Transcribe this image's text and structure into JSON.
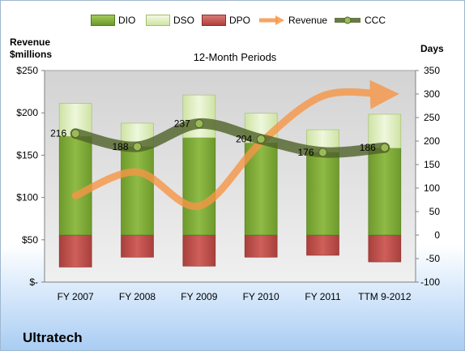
{
  "company": "Ultratech",
  "chart_data": {
    "type": "bar",
    "title": "12-Month Periods",
    "categories": [
      "FY 2007",
      "FY 2008",
      "FY 2009",
      "FY 2010",
      "FY 2011",
      "TTM 9-2012"
    ],
    "left_axis": {
      "title": [
        "Revenue",
        "$millions"
      ],
      "ylim": [
        0,
        250
      ],
      "ticks": [
        "$-",
        "$50",
        "$100",
        "$150",
        "$200",
        "$250"
      ],
      "tick_values": [
        0,
        50,
        100,
        150,
        200,
        250
      ]
    },
    "right_axis": {
      "title": "Days",
      "ylim": [
        -100,
        350
      ],
      "ticks": [
        "-100",
        "-50",
        "0",
        "50",
        "100",
        "150",
        "200",
        "250",
        "300",
        "350"
      ],
      "tick_values": [
        -100,
        -50,
        0,
        50,
        100,
        150,
        200,
        250,
        300,
        350
      ]
    },
    "series": [
      {
        "name": "DIO",
        "kind": "bar",
        "axis": "right",
        "color": "#7aa232",
        "values": [
          210,
          188,
          207,
          196,
          176,
          185
        ]
      },
      {
        "name": "DSO",
        "kind": "bar",
        "axis": "right",
        "color": "#d8eab0",
        "values": [
          70,
          50,
          91,
          63,
          48,
          72
        ]
      },
      {
        "name": "DPO",
        "kind": "bar",
        "axis": "right",
        "color": "#c0504d",
        "values": [
          -68,
          -47,
          -66,
          -47,
          -43,
          -57
        ]
      },
      {
        "name": "Revenue",
        "kind": "line",
        "axis": "left",
        "color": "#f79646",
        "values": [
          102,
          130,
          90,
          165,
          220,
          222
        ]
      },
      {
        "name": "CCC",
        "kind": "line",
        "axis": "right",
        "color": "#4f6228",
        "values": [
          216,
          188,
          237,
          204,
          176,
          186
        ]
      }
    ],
    "data_labels": [
      "216",
      "188",
      "237",
      "204",
      "176",
      "186"
    ],
    "grid": false,
    "legend": "top"
  }
}
